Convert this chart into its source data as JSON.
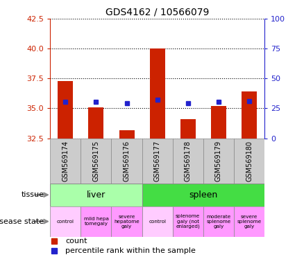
{
  "title": "GDS4162 / 10566079",
  "samples": [
    "GSM569174",
    "GSM569175",
    "GSM569176",
    "GSM569177",
    "GSM569178",
    "GSM569179",
    "GSM569180"
  ],
  "count_values": [
    37.3,
    35.1,
    33.2,
    40.0,
    34.1,
    35.2,
    36.4
  ],
  "percentile_values": [
    35.55,
    35.55,
    35.45,
    35.75,
    35.45,
    35.55,
    35.6
  ],
  "ylim_left": [
    32.5,
    42.5
  ],
  "ylim_right": [
    0,
    100
  ],
  "yticks_left": [
    32.5,
    35.0,
    37.5,
    40.0,
    42.5
  ],
  "yticks_right": [
    0,
    25,
    50,
    75,
    100
  ],
  "tissue_groups": [
    {
      "label": "liver",
      "start": 0,
      "end": 3,
      "color": "#aaffaa"
    },
    {
      "label": "spleen",
      "start": 3,
      "end": 7,
      "color": "#44dd44"
    }
  ],
  "disease_states": [
    {
      "label": "control",
      "start": 0,
      "end": 1,
      "color": "#ffccff"
    },
    {
      "label": "mild hepa\ntomegaly",
      "start": 1,
      "end": 2,
      "color": "#ff99ff"
    },
    {
      "label": "severe\nhepatome\ngaly",
      "start": 2,
      "end": 3,
      "color": "#ff99ff"
    },
    {
      "label": "control",
      "start": 3,
      "end": 4,
      "color": "#ffccff"
    },
    {
      "label": "splenome\ngaly (not\nenlarged)",
      "start": 4,
      "end": 5,
      "color": "#ff99ff"
    },
    {
      "label": "moderate\nsplenome\ngaly",
      "start": 5,
      "end": 6,
      "color": "#ff99ff"
    },
    {
      "label": "severe\nsplenome\ngaly",
      "start": 6,
      "end": 7,
      "color": "#ff99ff"
    }
  ],
  "bar_color": "#cc2200",
  "dot_color": "#2222cc",
  "bar_width": 0.5,
  "tick_color_left": "#cc2200",
  "tick_color_right": "#2222cc",
  "xtick_bg_color": "#cccccc",
  "border_color": "#888888"
}
